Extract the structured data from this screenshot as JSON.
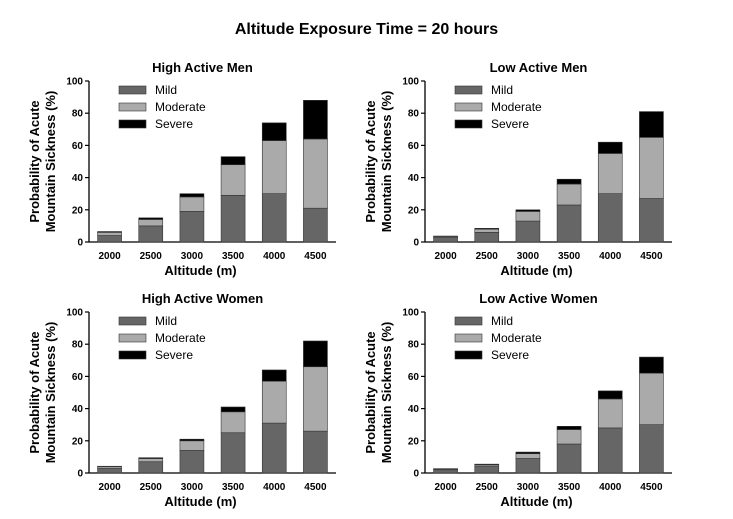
{
  "figure_title": "Altitude Exposure Time = 20 hours",
  "colors": {
    "mild": "#666666",
    "moderate": "#aaaaaa",
    "severe": "#000000",
    "edge": "#333333"
  },
  "chart_data": [
    {
      "type": "bar",
      "stacked": true,
      "title": "High Active Men",
      "xlabel": "Altitude (m)",
      "ylabel": "Probability of Acute Mountain Sickness (%)",
      "ylim": [
        0,
        100
      ],
      "yticks": [
        0,
        20,
        40,
        60,
        80,
        100
      ],
      "categories": [
        "2000",
        "2500",
        "3000",
        "3500",
        "4000",
        "4500"
      ],
      "legend": "top-left",
      "series": [
        {
          "name": "Mild",
          "values": [
            4,
            10,
            19,
            29,
            30,
            21
          ]
        },
        {
          "name": "Moderate",
          "values": [
            2,
            4,
            9,
            19,
            33,
            43
          ]
        },
        {
          "name": "Severe",
          "values": [
            0.5,
            1,
            2,
            5,
            11,
            24
          ]
        }
      ]
    },
    {
      "type": "bar",
      "stacked": true,
      "title": "Low Active Men",
      "xlabel": "Altitude (m)",
      "ylabel": "Probability of Acute Mountain Sickness (%)",
      "ylim": [
        0,
        100
      ],
      "yticks": [
        0,
        20,
        40,
        60,
        80,
        100
      ],
      "categories": [
        "2000",
        "2500",
        "3000",
        "3500",
        "4000",
        "4500"
      ],
      "legend": "top-left",
      "series": [
        {
          "name": "Mild",
          "values": [
            3,
            6,
            13,
            23,
            30,
            27
          ]
        },
        {
          "name": "Moderate",
          "values": [
            0.5,
            2,
            6,
            13,
            25,
            38
          ]
        },
        {
          "name": "Severe",
          "values": [
            0.2,
            0.5,
            1,
            3,
            7,
            16
          ]
        }
      ]
    },
    {
      "type": "bar",
      "stacked": true,
      "title": "High Active Women",
      "xlabel": "Altitude (m)",
      "ylabel": "Probability of Acute Mountain Sickness (%)",
      "ylim": [
        0,
        100
      ],
      "yticks": [
        0,
        20,
        40,
        60,
        80,
        100
      ],
      "categories": [
        "2000",
        "2500",
        "3000",
        "3500",
        "4000",
        "4500"
      ],
      "legend": "top-left",
      "series": [
        {
          "name": "Mild",
          "values": [
            3,
            7,
            14,
            25,
            31,
            26
          ]
        },
        {
          "name": "Moderate",
          "values": [
            1,
            2,
            6,
            13,
            26,
            40
          ]
        },
        {
          "name": "Severe",
          "values": [
            0.2,
            0.5,
            1,
            3,
            7,
            16
          ]
        }
      ]
    },
    {
      "type": "bar",
      "stacked": true,
      "title": "Low Active Women",
      "xlabel": "Altitude (m)",
      "ylabel": "Probability of Acute Mountain Sickness (%)",
      "ylim": [
        0,
        100
      ],
      "yticks": [
        0,
        20,
        40,
        60,
        80,
        100
      ],
      "categories": [
        "2000",
        "2500",
        "3000",
        "3500",
        "4000",
        "4500"
      ],
      "legend": "top-left",
      "series": [
        {
          "name": "Mild",
          "values": [
            2,
            4,
            9,
            18,
            28,
            30
          ]
        },
        {
          "name": "Moderate",
          "values": [
            0.5,
            1,
            3,
            9,
            18,
            32
          ]
        },
        {
          "name": "Severe",
          "values": [
            0.2,
            0.5,
            1,
            2,
            5,
            10
          ]
        }
      ]
    }
  ]
}
